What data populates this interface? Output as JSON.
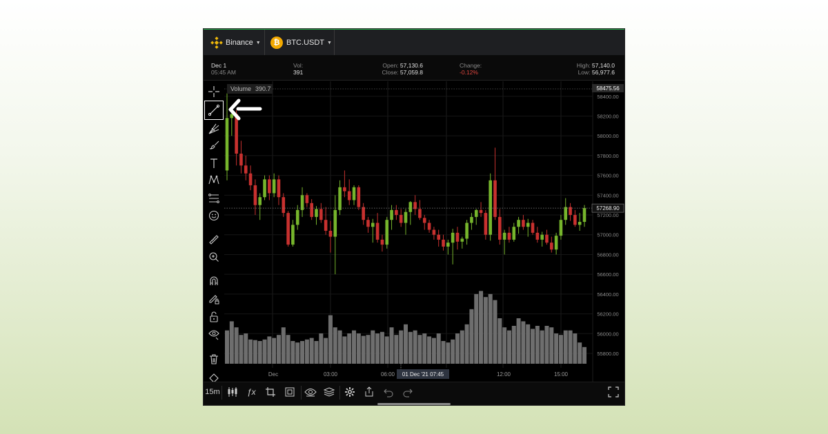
{
  "colors": {
    "up": "#76b52c",
    "down": "#c8312f",
    "volume": "#6e6e6e",
    "accent_binance": "#f0b90b",
    "accent_btc": "#f2a900"
  },
  "header": {
    "exchange": "Binance",
    "pair": "BTC.USDT",
    "exchange_icon": "binance-logo-icon",
    "pair_icon": "bitcoin-icon"
  },
  "info": {
    "date": "Dec 1",
    "time": "05:45 AM",
    "vol_label": "Vol:",
    "vol_value": "391",
    "open_label": "Open:",
    "open_value": "57,130.6",
    "close_label": "Close:",
    "close_value": "57,059.8",
    "change_label": "Change:",
    "change_value": "-0.12%",
    "high_label": "High:",
    "high_value": "57,140.0",
    "low_label": "Low:",
    "low_value": "56,977.6"
  },
  "volume_badge": {
    "label": "Volume",
    "value": "390.7"
  },
  "price_labels": {
    "top_marker": "58475.56",
    "last_price": "57268.90",
    "ticks": [
      "58400.00",
      "58200.00",
      "58000.00",
      "57800.00",
      "57600.00",
      "57400.00",
      "57200.00",
      "57000.00",
      "56800.00",
      "56600.00",
      "56400.00",
      "56200.00",
      "56000.00",
      "55800.00"
    ]
  },
  "time_axis": {
    "labels": [
      "Dec",
      "03:00",
      "06:00",
      "12:00",
      "15:00"
    ],
    "cursor_label": "01 Dec '21   07:45"
  },
  "chart_data": {
    "type": "candlestick",
    "interval": "15m",
    "ylim": [
      55700,
      58500
    ],
    "last_price": 57268.9,
    "candles": [
      {
        "o": 57650,
        "h": 58430,
        "l": 57550,
        "c": 58180
      },
      {
        "o": 58180,
        "h": 58300,
        "l": 58000,
        "c": 58220
      },
      {
        "o": 58220,
        "h": 58260,
        "l": 57700,
        "c": 57820
      },
      {
        "o": 57820,
        "h": 57950,
        "l": 57620,
        "c": 57700
      },
      {
        "o": 57700,
        "h": 57800,
        "l": 57550,
        "c": 57620
      },
      {
        "o": 57620,
        "h": 57700,
        "l": 57450,
        "c": 57500
      },
      {
        "o": 57500,
        "h": 57560,
        "l": 57200,
        "c": 57300
      },
      {
        "o": 57300,
        "h": 57420,
        "l": 57150,
        "c": 57380
      },
      {
        "o": 57380,
        "h": 57600,
        "l": 57350,
        "c": 57560
      },
      {
        "o": 57560,
        "h": 57600,
        "l": 57350,
        "c": 57420
      },
      {
        "o": 57420,
        "h": 57620,
        "l": 57380,
        "c": 57560
      },
      {
        "o": 57560,
        "h": 57600,
        "l": 57300,
        "c": 57380
      },
      {
        "o": 57380,
        "h": 57420,
        "l": 57180,
        "c": 57220
      },
      {
        "o": 57220,
        "h": 57240,
        "l": 56880,
        "c": 56900
      },
      {
        "o": 56900,
        "h": 57150,
        "l": 56880,
        "c": 57100
      },
      {
        "o": 57100,
        "h": 57300,
        "l": 57050,
        "c": 57250
      },
      {
        "o": 57250,
        "h": 57480,
        "l": 57180,
        "c": 57400
      },
      {
        "o": 57400,
        "h": 57420,
        "l": 57280,
        "c": 57320
      },
      {
        "o": 57320,
        "h": 57360,
        "l": 57150,
        "c": 57180
      },
      {
        "o": 57180,
        "h": 57290,
        "l": 57100,
        "c": 57260
      },
      {
        "o": 57260,
        "h": 57320,
        "l": 57120,
        "c": 57150
      },
      {
        "o": 57150,
        "h": 57280,
        "l": 57000,
        "c": 57040
      },
      {
        "o": 57040,
        "h": 57140,
        "l": 56820,
        "c": 56980
      },
      {
        "o": 56980,
        "h": 57400,
        "l": 56600,
        "c": 57250
      },
      {
        "o": 57250,
        "h": 57550,
        "l": 57200,
        "c": 57480
      },
      {
        "o": 57480,
        "h": 57650,
        "l": 57380,
        "c": 57440
      },
      {
        "o": 57440,
        "h": 57560,
        "l": 57300,
        "c": 57350
      },
      {
        "o": 57350,
        "h": 57500,
        "l": 57300,
        "c": 57480
      },
      {
        "o": 57480,
        "h": 57500,
        "l": 57250,
        "c": 57280
      },
      {
        "o": 57280,
        "h": 57320,
        "l": 57100,
        "c": 57150
      },
      {
        "o": 57150,
        "h": 57180,
        "l": 57020,
        "c": 57080
      },
      {
        "o": 57080,
        "h": 57160,
        "l": 56920,
        "c": 57120
      },
      {
        "o": 57120,
        "h": 57220,
        "l": 56920,
        "c": 56950
      },
      {
        "o": 56950,
        "h": 57000,
        "l": 56830,
        "c": 56900
      },
      {
        "o": 56900,
        "h": 57180,
        "l": 56860,
        "c": 57150
      },
      {
        "o": 57150,
        "h": 57300,
        "l": 57050,
        "c": 57250
      },
      {
        "o": 57250,
        "h": 57300,
        "l": 57150,
        "c": 57200
      },
      {
        "o": 57200,
        "h": 57260,
        "l": 57080,
        "c": 57120
      },
      {
        "o": 57120,
        "h": 57260,
        "l": 57000,
        "c": 57230
      },
      {
        "o": 57230,
        "h": 57340,
        "l": 57100,
        "c": 57330
      },
      {
        "o": 57330,
        "h": 57400,
        "l": 57200,
        "c": 57260
      },
      {
        "o": 57260,
        "h": 57350,
        "l": 57150,
        "c": 57170
      },
      {
        "o": 57170,
        "h": 57200,
        "l": 57050,
        "c": 57120
      },
      {
        "o": 57120,
        "h": 57150,
        "l": 57020,
        "c": 57050
      },
      {
        "o": 57050,
        "h": 57080,
        "l": 56950,
        "c": 57000
      },
      {
        "o": 57000,
        "h": 57050,
        "l": 56880,
        "c": 56950
      },
      {
        "o": 56950,
        "h": 57000,
        "l": 56840,
        "c": 56880
      },
      {
        "o": 56880,
        "h": 56950,
        "l": 56800,
        "c": 56920
      },
      {
        "o": 56920,
        "h": 57060,
        "l": 56700,
        "c": 57020
      },
      {
        "o": 57020,
        "h": 57080,
        "l": 56850,
        "c": 56930
      },
      {
        "o": 56930,
        "h": 56980,
        "l": 56860,
        "c": 56960
      },
      {
        "o": 56960,
        "h": 57150,
        "l": 56900,
        "c": 57120
      },
      {
        "o": 57120,
        "h": 57220,
        "l": 57050,
        "c": 57180
      },
      {
        "o": 57180,
        "h": 57260,
        "l": 57100,
        "c": 57250
      },
      {
        "o": 57250,
        "h": 57330,
        "l": 57180,
        "c": 57220
      },
      {
        "o": 57220,
        "h": 57250,
        "l": 56950,
        "c": 57000
      },
      {
        "o": 57000,
        "h": 57620,
        "l": 56940,
        "c": 57550
      },
      {
        "o": 57550,
        "h": 57880,
        "l": 57150,
        "c": 57180
      },
      {
        "o": 57180,
        "h": 57260,
        "l": 56900,
        "c": 56950
      },
      {
        "o": 56950,
        "h": 57050,
        "l": 56800,
        "c": 57020
      },
      {
        "o": 57020,
        "h": 57080,
        "l": 56920,
        "c": 56950
      },
      {
        "o": 56950,
        "h": 57120,
        "l": 56930,
        "c": 57080
      },
      {
        "o": 57080,
        "h": 57180,
        "l": 57010,
        "c": 57150
      },
      {
        "o": 57150,
        "h": 57200,
        "l": 57050,
        "c": 57080
      },
      {
        "o": 57080,
        "h": 57160,
        "l": 56980,
        "c": 57120
      },
      {
        "o": 57120,
        "h": 57150,
        "l": 57000,
        "c": 57020
      },
      {
        "o": 57020,
        "h": 57080,
        "l": 56920,
        "c": 56950
      },
      {
        "o": 56950,
        "h": 57030,
        "l": 56880,
        "c": 57000
      },
      {
        "o": 57000,
        "h": 57050,
        "l": 56900,
        "c": 56920
      },
      {
        "o": 56920,
        "h": 56980,
        "l": 56820,
        "c": 56850
      },
      {
        "o": 56850,
        "h": 57020,
        "l": 56800,
        "c": 56990
      },
      {
        "o": 56990,
        "h": 57200,
        "l": 56950,
        "c": 57150
      },
      {
        "o": 57150,
        "h": 57370,
        "l": 57100,
        "c": 57280
      },
      {
        "o": 57280,
        "h": 57320,
        "l": 57140,
        "c": 57200
      },
      {
        "o": 57200,
        "h": 57250,
        "l": 57080,
        "c": 57100
      },
      {
        "o": 57100,
        "h": 57220,
        "l": 57040,
        "c": 57130
      },
      {
        "o": 57130,
        "h": 57300,
        "l": 57080,
        "c": 57270
      }
    ],
    "volume": [
      110,
      140,
      120,
      95,
      100,
      80,
      78,
      75,
      80,
      90,
      85,
      95,
      120,
      95,
      75,
      70,
      75,
      80,
      85,
      75,
      100,
      85,
      160,
      120,
      110,
      90,
      100,
      110,
      100,
      92,
      95,
      110,
      100,
      105,
      90,
      120,
      95,
      110,
      130,
      105,
      110,
      95,
      100,
      90,
      85,
      100,
      75,
      70,
      80,
      100,
      110,
      130,
      180,
      230,
      240,
      220,
      230,
      210,
      150,
      120,
      110,
      125,
      150,
      140,
      130,
      115,
      125,
      110,
      125,
      120,
      100,
      95,
      110,
      110,
      100,
      70,
      55
    ]
  }
}
